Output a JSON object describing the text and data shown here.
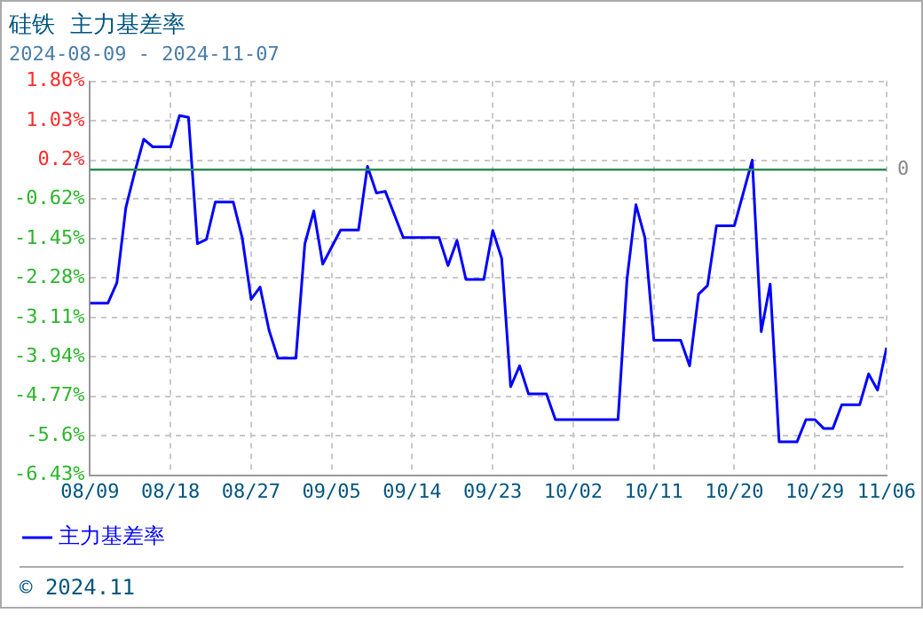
{
  "chart_data": {
    "type": "line",
    "title": "硅铁  主力基差率",
    "subtitle": "2024-08-09 - 2024-11-07",
    "x": [
      "2024-08-09",
      "2024-08-11",
      "2024-08-12",
      "2024-08-13",
      "2024-08-14",
      "2024-08-15",
      "2024-08-16",
      "2024-08-18",
      "2024-08-19",
      "2024-08-20",
      "2024-08-21",
      "2024-08-22",
      "2024-08-23",
      "2024-08-25",
      "2024-08-26",
      "2024-08-27",
      "2024-08-28",
      "2024-08-29",
      "2024-08-30",
      "2024-09-01",
      "2024-09-02",
      "2024-09-03",
      "2024-09-04",
      "2024-09-06",
      "2024-09-08",
      "2024-09-09",
      "2024-09-10",
      "2024-09-11",
      "2024-09-13",
      "2024-09-17",
      "2024-09-18",
      "2024-09-19",
      "2024-09-20",
      "2024-09-22",
      "2024-09-23",
      "2024-09-24",
      "2024-09-25",
      "2024-09-26",
      "2024-09-27",
      "2024-09-29",
      "2024-09-30",
      "2024-10-07",
      "2024-10-08",
      "2024-10-09",
      "2024-10-10",
      "2024-10-11",
      "2024-10-14",
      "2024-10-15",
      "2024-10-16",
      "2024-10-17",
      "2024-10-18",
      "2024-10-20",
      "2024-10-22",
      "2024-10-23",
      "2024-10-24",
      "2024-10-25",
      "2024-10-27",
      "2024-10-28",
      "2024-10-29",
      "2024-10-30",
      "2024-10-31",
      "2024-11-01",
      "2024-11-03",
      "2024-11-04",
      "2024-11-05",
      "2024-11-06"
    ],
    "series": [
      {
        "name": "主力基差率",
        "color": "#0000ff",
        "values": [
          -2.81,
          -2.81,
          -2.38,
          -0.8,
          -0.05,
          0.64,
          0.48,
          0.48,
          1.14,
          1.1,
          -1.56,
          -1.47,
          -0.68,
          -0.68,
          -1.43,
          -2.73,
          -2.47,
          -3.38,
          -3.97,
          -3.97,
          -1.56,
          -0.87,
          -1.99,
          -1.27,
          -1.27,
          0.07,
          -0.49,
          -0.46,
          -1.43,
          -1.43,
          -2.02,
          -1.49,
          -2.31,
          -2.31,
          -1.28,
          -1.87,
          -4.57,
          -4.13,
          -4.72,
          -4.72,
          -5.26,
          -5.26,
          -2.31,
          -0.74,
          -1.43,
          -3.59,
          -3.59,
          -4.13,
          -2.62,
          -2.44,
          -1.18,
          -1.18,
          0.2,
          -3.41,
          -2.41,
          -5.73,
          -5.73,
          -5.26,
          -5.26,
          -5.45,
          -5.45,
          -4.95,
          -4.95,
          -4.3,
          -4.64,
          -3.75
        ]
      }
    ],
    "xlim": [
      "2024-08-09",
      "2024-11-06"
    ],
    "xticks": [
      {
        "value": "2024-08-09",
        "label": "08/09"
      },
      {
        "value": "2024-08-18",
        "label": "08/18"
      },
      {
        "value": "2024-08-27",
        "label": "08/27"
      },
      {
        "value": "2024-09-05",
        "label": "09/05"
      },
      {
        "value": "2024-09-14",
        "label": "09/14"
      },
      {
        "value": "2024-09-23",
        "label": "09/23"
      },
      {
        "value": "2024-10-02",
        "label": "10/02"
      },
      {
        "value": "2024-10-11",
        "label": "10/11"
      },
      {
        "value": "2024-10-20",
        "label": "10/20"
      },
      {
        "value": "2024-10-29",
        "label": "10/29"
      },
      {
        "value": "2024-11-06",
        "label": "11/06"
      }
    ],
    "ylim": [
      -6.43,
      1.86
    ],
    "yticks": [
      {
        "value": -6.43,
        "label": "-6.43%"
      },
      {
        "value": -5.6,
        "label": "-5.6%"
      },
      {
        "value": -4.77,
        "label": "-4.77%"
      },
      {
        "value": -3.94,
        "label": "-3.94%"
      },
      {
        "value": -3.11,
        "label": "-3.11%"
      },
      {
        "value": -2.28,
        "label": "-2.28%"
      },
      {
        "value": -1.45,
        "label": "-1.45%"
      },
      {
        "value": -0.62,
        "label": "-0.62%"
      },
      {
        "value": 0.2,
        "label": "0.2%"
      },
      {
        "value": 1.03,
        "label": "1.03%"
      },
      {
        "value": 1.86,
        "label": "1.86%"
      }
    ],
    "ref_lines": [
      {
        "axis": "y",
        "value": 0,
        "label": "0",
        "color": "#2e8b57"
      }
    ],
    "grid": true,
    "legend": "bottom left",
    "marker": "none",
    "line_style": "solid",
    "annotations": [
      "© 2024.11"
    ]
  }
}
